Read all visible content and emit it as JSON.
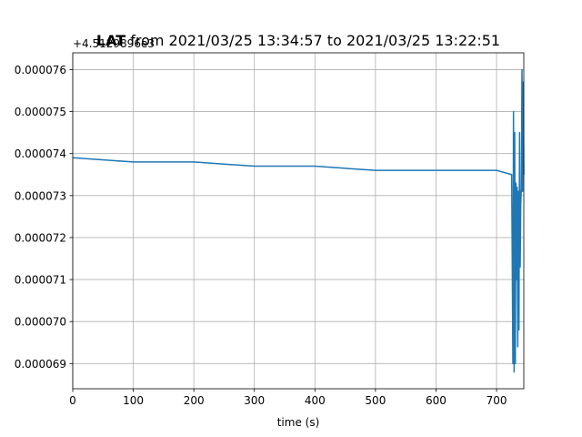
{
  "chart_data": {
    "type": "line",
    "title_bold": "LAT",
    "title_rest": " from 2021/03/25 13:34:57 to 2021/03/25 13:22:51",
    "xlabel": "time (s)",
    "ylabel": "",
    "offset_text": "+4.5129896e3",
    "xlim": [
      0,
      745
    ],
    "ylim": [
      6.84e-05,
      7.64e-05
    ],
    "xticks": [
      0,
      100,
      200,
      300,
      400,
      500,
      600,
      700
    ],
    "xtick_labels": [
      "0",
      "100",
      "200",
      "300",
      "400",
      "500",
      "600",
      "700"
    ],
    "yticks": [
      6.9e-05,
      7e-05,
      7.1e-05,
      7.2e-05,
      7.3e-05,
      7.4e-05,
      7.5e-05,
      7.6e-05
    ],
    "ytick_labels": [
      "0.000069",
      "0.000070",
      "0.000071",
      "0.000072",
      "0.000073",
      "0.000074",
      "0.000075",
      "0.000076"
    ],
    "grid": true,
    "color": "#1f77b4",
    "series": [
      {
        "x": [
          0,
          100,
          200,
          300,
          400,
          500,
          600,
          700,
          725,
          727,
          728,
          729,
          730,
          731,
          732,
          733,
          734,
          735,
          736,
          737,
          738,
          739,
          740,
          741,
          742,
          743,
          744,
          745
        ],
        "y": [
          7.39e-05,
          7.38e-05,
          7.38e-05,
          7.37e-05,
          7.37e-05,
          7.36e-05,
          7.36e-05,
          7.36e-05,
          7.35e-05,
          6.9e-05,
          7.5e-05,
          6.88e-05,
          7.45e-05,
          6.9e-05,
          7.33e-05,
          7.1e-05,
          7.32e-05,
          6.94e-05,
          7.31e-05,
          6.98e-05,
          7.45e-05,
          7.13e-05,
          7.28e-05,
          7.32e-05,
          7.6e-05,
          7.31e-05,
          7.57e-05,
          7.35e-05
        ]
      }
    ]
  }
}
